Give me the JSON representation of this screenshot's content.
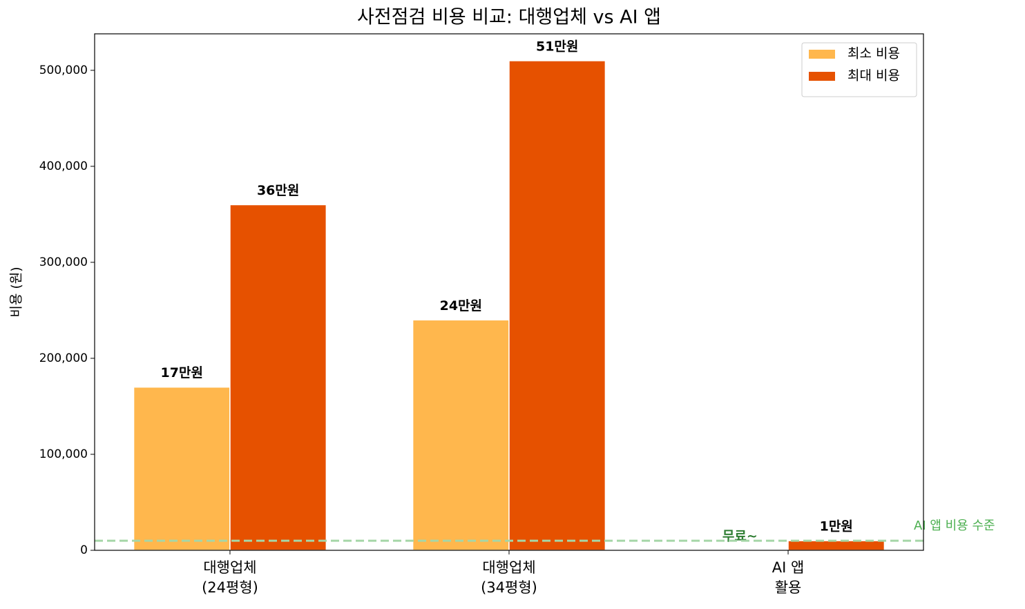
{
  "chart_data": {
    "type": "bar",
    "title": "사전점검 비용 비교: 대행업체 vs AI 앱",
    "y_label": "비용 (원)",
    "categories": [
      "대행업체\n(24평형)",
      "대행업체\n(34평형)",
      "AI 앱\n활용"
    ],
    "series": [
      {
        "name": "최소 비용",
        "color": "#ffb74d",
        "values": [
          170000,
          240000,
          0
        ],
        "value_labels": [
          "17만원",
          "24만원",
          "무료~"
        ],
        "value_label_colors": [
          "#000000",
          "#000000",
          "#2e7d32"
        ]
      },
      {
        "name": "최대 비용",
        "color": "#e65100",
        "values": [
          360000,
          510000,
          10000
        ],
        "value_labels": [
          "36만원",
          "51만원",
          "1만원"
        ],
        "value_label_colors": [
          "#000000",
          "#000000",
          "#000000"
        ]
      }
    ],
    "ylim": [
      0,
      538000
    ],
    "yticks": [
      0,
      {
        "value": 100000,
        "label": "100,000"
      },
      {
        "value": 200000,
        "label": "200,000"
      },
      {
        "value": 300000,
        "label": "300,000"
      },
      {
        "value": 400000,
        "label": "400,000"
      },
      {
        "value": 500000,
        "label": "500,000"
      }
    ],
    "reference_line": {
      "value": 10000,
      "label": "AI 앱 비용 수준",
      "color": "#a5d6a7",
      "label_color": "#4caf50"
    },
    "legend": "upper right",
    "grid": false
  }
}
